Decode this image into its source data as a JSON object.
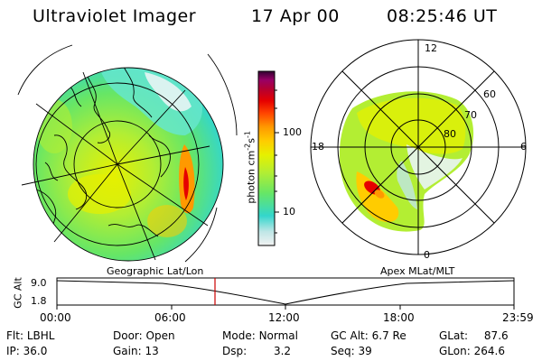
{
  "header": {
    "title": "Ultraviolet Imager",
    "date": "17 Apr 00",
    "time": "08:25:46 UT"
  },
  "colorbar": {
    "unit_label": "photon cm",
    "unit_sup1": "-2",
    "unit_mid": "s",
    "unit_sup2": "-1",
    "tick_100": "100",
    "tick_10": "10",
    "stops": [
      "#f2f2f2",
      "#bfe6e6",
      "#33d6cc",
      "#66e666",
      "#b3ee33",
      "#e6f000",
      "#ffcc00",
      "#ff9900",
      "#ff4400",
      "#e60000",
      "#b30033",
      "#990066",
      "#330033"
    ]
  },
  "polar_plot": {
    "label_12": "12",
    "label_18": "18",
    "label_6": "6",
    "label_0": "0",
    "label_60": "60",
    "label_70": "70",
    "label_80": "80"
  },
  "panel_titles": {
    "left": "Geographic Lat/Lon",
    "right": "Apex MLat/MLT"
  },
  "timeline": {
    "y_axis_label": "GC Alt",
    "y_top": "9.0",
    "y_bottom": "1.8",
    "x_ticks": [
      "00:00",
      "06:00",
      "12:00",
      "18:00",
      "23:59"
    ],
    "marker_time": "08:25"
  },
  "info": {
    "flt_label": "Flt:",
    "flt_value": "LBHL",
    "ip_label": "IP:",
    "ip_value": "36.0",
    "door_label": "Door:",
    "door_value": "Open",
    "gain_label": "Gain:",
    "gain_value": "13",
    "mode_label": "Mode:",
    "mode_value": "Normal",
    "dsp_label": "Dsp:",
    "dsp_value": "3.2",
    "gcalt_label": "GC Alt:",
    "gcalt_value": "6.7 Re",
    "seq_label": "Seq:",
    "seq_value": "39",
    "glat_label": "GLat:",
    "glat_value": "87.6",
    "glon_label": "GLon:",
    "glon_value": "264.6"
  }
}
